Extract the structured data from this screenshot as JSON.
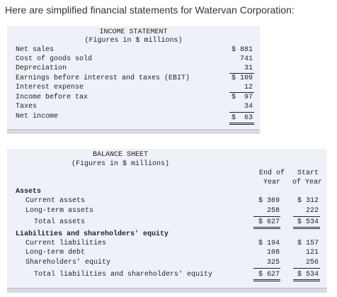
{
  "intro": "Here are simplified financial statements for Watervan Corporation:",
  "income": {
    "title": "INCOME STATEMENT",
    "subtitle": "(Figures in $ millions)",
    "rows": [
      {
        "label": "Net sales",
        "value": "$ 881"
      },
      {
        "label": "Cost of goods sold",
        "value": "741"
      },
      {
        "label": "Depreciation",
        "value": "31"
      },
      {
        "label": "Earnings before interest and taxes (EBIT)",
        "value": "$ 109"
      },
      {
        "label": "Interest expense",
        "value": "12"
      },
      {
        "label": "Income before tax",
        "value": "$  97"
      },
      {
        "label": "Taxes",
        "value": "34"
      },
      {
        "label": "Net income",
        "value": "$  63"
      }
    ]
  },
  "balance": {
    "title": "BALANCE SHEET",
    "subtitle": "(Figures in $ millions)",
    "col1_line1": "End of",
    "col1_line2": "Year",
    "col2_line1": "Start",
    "col2_line2": "of Year",
    "assets_header": "Assets",
    "liab_header": "Liabilities and shareholders' equity",
    "rows": [
      {
        "label": "Current assets",
        "end": "$ 369",
        "start": "$ 312"
      },
      {
        "label": "Long-term assets",
        "end": "258",
        "start": "222"
      },
      {
        "label": "Total assets",
        "end": "$ 627",
        "start": "$ 534"
      },
      {
        "label": "Current liabilities",
        "end": "$ 194",
        "start": "$ 157"
      },
      {
        "label": "Long-term debt",
        "end": "108",
        "start": "121"
      },
      {
        "label": "Shareholders' equity",
        "end": "325",
        "start": "256"
      },
      {
        "label": "Total liabilities and shareholders' equity",
        "end": "$ 627",
        "start": "$ 534"
      }
    ]
  }
}
